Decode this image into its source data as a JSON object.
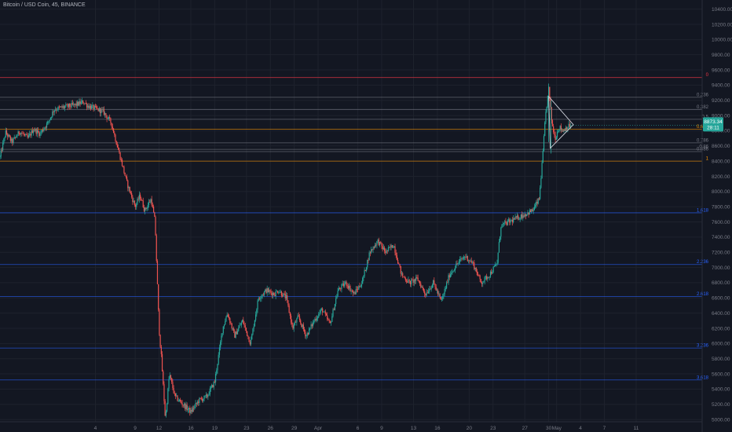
{
  "header": {
    "title": "Bitcoin / USD Coin, 45, BINANCE"
  },
  "colors": {
    "background": "#131722",
    "grid": "#1e222d",
    "axis_text": "#787b86",
    "candle_up": "#26a69a",
    "candle_down": "#ef5350",
    "fib_red": "#f23645",
    "fib_orange": "#ff9800",
    "fib_gray": "#787b86",
    "fib_blue": "#2962ff",
    "price_tag": "#26a69a",
    "triangle": "#d1d4dc"
  },
  "price_tag": {
    "price": "8873.34",
    "countdown": "28:11"
  },
  "chart_data": {
    "type": "candlestick",
    "yaxis": {
      "ticks": [
        5000,
        5200,
        5400,
        5600,
        5800,
        6000,
        6200,
        6400,
        6600,
        6800,
        7000,
        7200,
        7400,
        7600,
        7800,
        8000,
        8200,
        8400,
        8600,
        8800,
        9000,
        9200,
        9400,
        9600,
        9800,
        10000,
        10200,
        10400
      ],
      "tick_labels": [
        "5000.00",
        "5200.00",
        "5400.00",
        "5600.00",
        "5800.00",
        "6000.00",
        "6200.00",
        "6400.00",
        "6600.00",
        "6800.00",
        "7000.00",
        "7200.00",
        "7400.00",
        "7600.00",
        "7800.00",
        "8000.00",
        "8200.00",
        "8400.00",
        "8600.00",
        "8800.00",
        "9000.00",
        "9200.00",
        "9400.00",
        "9600.00",
        "9800.00",
        "10000.00",
        "10200.00",
        "10400.00"
      ],
      "range": [
        4970,
        10520
      ]
    },
    "xaxis": {
      "range_days": [
        -8.0,
        80.3
      ],
      "tick_labels": [
        "4",
        "9",
        "12",
        "16",
        "19",
        "23",
        "26",
        "29",
        "Apr",
        "6",
        "9",
        "13",
        "16",
        "20",
        "23",
        "27",
        "30",
        "May",
        "4",
        "7",
        "11"
      ],
      "tick_days": [
        4,
        9,
        12,
        16,
        19,
        23,
        26,
        29,
        32,
        37,
        40,
        44,
        47,
        51,
        54,
        58,
        61,
        62,
        65,
        68,
        72
      ]
    },
    "anchors": [
      [
        -8.0,
        8450
      ],
      [
        -7.3,
        8780
      ],
      [
        -6.5,
        8650
      ],
      [
        -5.5,
        8790
      ],
      [
        -4.5,
        8700
      ],
      [
        -3.8,
        8820
      ],
      [
        -3.0,
        8760
      ],
      [
        -2.0,
        8900
      ],
      [
        -1.2,
        9080
      ],
      [
        0.0,
        9110
      ],
      [
        1.5,
        9140
      ],
      [
        2.5,
        9180
      ],
      [
        3.0,
        9130
      ],
      [
        4.0,
        9090
      ],
      [
        5.0,
        9050
      ],
      [
        6.0,
        8900
      ],
      [
        7.0,
        8500
      ],
      [
        8.0,
        8100
      ],
      [
        9.0,
        7800
      ],
      [
        9.6,
        7950
      ],
      [
        10.2,
        7750
      ],
      [
        11.0,
        7900
      ],
      [
        11.5,
        7600
      ],
      [
        12.0,
        6200
      ],
      [
        12.3,
        5800
      ],
      [
        12.8,
        5000
      ],
      [
        13.3,
        5600
      ],
      [
        14.0,
        5300
      ],
      [
        15.0,
        5200
      ],
      [
        16.0,
        5100
      ],
      [
        17.0,
        5250
      ],
      [
        18.0,
        5300
      ],
      [
        19.0,
        5500
      ],
      [
        20.0,
        6200
      ],
      [
        20.6,
        6400
      ],
      [
        21.5,
        6100
      ],
      [
        22.5,
        6300
      ],
      [
        23.5,
        6000
      ],
      [
        24.5,
        6600
      ],
      [
        25.5,
        6700
      ],
      [
        26.5,
        6650
      ],
      [
        27.0,
        6700
      ],
      [
        28.0,
        6600
      ],
      [
        28.8,
        6200
      ],
      [
        29.5,
        6350
      ],
      [
        30.5,
        6100
      ],
      [
        31.5,
        6300
      ],
      [
        32.5,
        6450
      ],
      [
        33.5,
        6250
      ],
      [
        34.5,
        6700
      ],
      [
        35.5,
        6800
      ],
      [
        36.5,
        6650
      ],
      [
        37.5,
        6800
      ],
      [
        38.5,
        7200
      ],
      [
        39.5,
        7350
      ],
      [
        40.5,
        7200
      ],
      [
        41.5,
        7300
      ],
      [
        42.5,
        6900
      ],
      [
        43.5,
        6800
      ],
      [
        44.5,
        6850
      ],
      [
        45.5,
        6650
      ],
      [
        46.5,
        6800
      ],
      [
        47.5,
        6550
      ],
      [
        48.5,
        6900
      ],
      [
        49.5,
        7050
      ],
      [
        50.5,
        7150
      ],
      [
        51.5,
        7050
      ],
      [
        52.5,
        6800
      ],
      [
        53.5,
        6900
      ],
      [
        54.5,
        7050
      ],
      [
        55.0,
        7550
      ],
      [
        56.0,
        7600
      ],
      [
        57.0,
        7650
      ],
      [
        58.0,
        7700
      ],
      [
        59.0,
        7750
      ],
      [
        59.8,
        7900
      ],
      [
        60.2,
        8400
      ],
      [
        60.6,
        9000
      ],
      [
        61.0,
        9350
      ],
      [
        61.4,
        8900
      ],
      [
        61.8,
        8700
      ],
      [
        62.3,
        8850
      ],
      [
        62.8,
        8800
      ],
      [
        63.3,
        8850
      ],
      [
        63.8,
        8870
      ]
    ],
    "fib_levels": [
      {
        "label": "0",
        "price": 9500,
        "color": "#f23645"
      },
      {
        "label": "0.236",
        "price": 9240,
        "color": "#787b86"
      },
      {
        "label": "0.382",
        "price": 9080,
        "color": "#787b86"
      },
      {
        "label": "0.5",
        "price": 8950,
        "color": "#787b86"
      },
      {
        "label": "0.618",
        "price": 8820,
        "color": "#ff9800"
      },
      {
        "label": "0.786",
        "price": 8640,
        "color": "#787b86"
      },
      {
        "label": "0.86",
        "price": 8555,
        "color": "#787b86"
      },
      {
        "label": "0.886",
        "price": 8525,
        "color": "#787b86"
      },
      {
        "label": "1",
        "price": 8400,
        "color": "#ff9800"
      },
      {
        "label": "1.618",
        "price": 7720,
        "color": "#2962ff"
      },
      {
        "label": "2.236",
        "price": 7040,
        "color": "#2962ff"
      },
      {
        "label": "2.618",
        "price": 6620,
        "color": "#2962ff"
      },
      {
        "label": "3.236",
        "price": 5940,
        "color": "#2962ff"
      },
      {
        "label": "3.618",
        "price": 5520,
        "color": "#2962ff"
      }
    ],
    "triangle": {
      "points_days_price": [
        [
          61.0,
          9250
        ],
        [
          64.1,
          8880
        ],
        [
          61.2,
          8570
        ]
      ]
    },
    "grid": true
  }
}
